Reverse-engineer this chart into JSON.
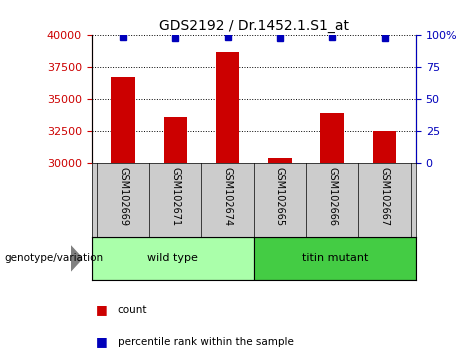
{
  "title": "GDS2192 / Dr.1452.1.S1_at",
  "samples": [
    "GSM102669",
    "GSM102671",
    "GSM102674",
    "GSM102665",
    "GSM102666",
    "GSM102667"
  ],
  "counts": [
    36700,
    33600,
    38700,
    30350,
    33900,
    32500
  ],
  "percentile_ranks": [
    99,
    98,
    99,
    98,
    99,
    98
  ],
  "bar_color": "#CC0000",
  "percentile_color": "#0000BB",
  "ymin": 30000,
  "ymax": 40000,
  "yticks": [
    30000,
    32500,
    35000,
    37500,
    40000
  ],
  "right_yticks": [
    0,
    25,
    50,
    75,
    100
  ],
  "right_yticklabels": [
    "0",
    "25",
    "50",
    "75",
    "100%"
  ],
  "left_axis_color": "#CC0000",
  "right_axis_color": "#0000BB",
  "bg_color": "#FFFFFF",
  "label_area_color": "#CCCCCC",
  "wild_type_color": "#AAFFAA",
  "titin_color": "#44CC44",
  "title_fontsize": 10,
  "tick_fontsize": 8,
  "label_fontsize": 7,
  "group_label": "genotype/variation",
  "legend_count": "count",
  "legend_pct": "percentile rank within the sample"
}
